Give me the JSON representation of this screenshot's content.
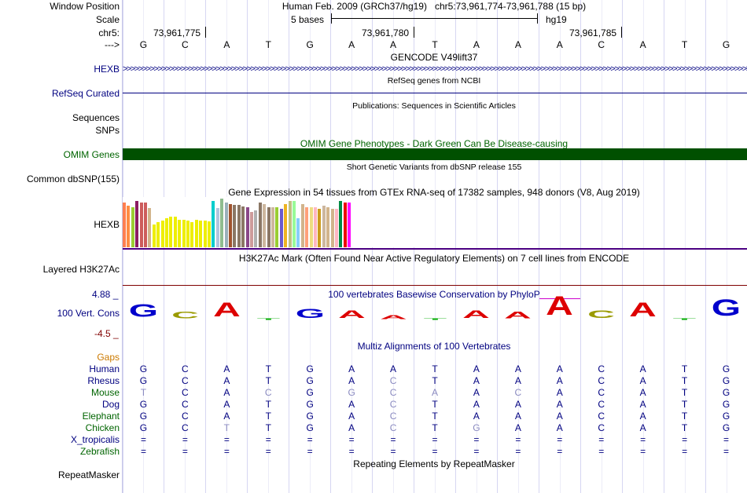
{
  "header": {
    "window_position_label": "Window Position",
    "assembly": "Human Feb. 2009 (GRCh37/hg19)",
    "position": "chr5:73,961,774-73,961,788 (15 bp)",
    "scale_label": "Scale",
    "scale_text": "5 bases",
    "scale_db": "hg19",
    "chrom_label": "chr5:",
    "coord_ticks": [
      "73,961,775",
      "73,961,780",
      "73,961,785"
    ],
    "strand_label": "--->"
  },
  "bases": [
    "G",
    "C",
    "A",
    "T",
    "G",
    "A",
    "A",
    "T",
    "A",
    "A",
    "A",
    "C",
    "A",
    "T",
    "G"
  ],
  "tracks": {
    "gencode": {
      "title": "GENCODE V49lift37",
      "label": "HEXB"
    },
    "refseq": {
      "title": "RefSeq genes from NCBI",
      "label": "RefSeq Curated"
    },
    "publications": {
      "title": "Publications: Sequences in Scientific Articles",
      "label1": "Sequences",
      "label2": "SNPs"
    },
    "omim": {
      "title": "OMIM Gene Phenotypes - Dark Green Can Be Disease-causing",
      "label": "OMIM Genes",
      "color": "#005000"
    },
    "dbsnp": {
      "title": "Short Genetic Variants from dbSNP release 155",
      "label": "Common dbSNP(155)"
    },
    "gtex": {
      "title": "Gene Expression in 54 tissues from GTEx RNA-seq of 17382 samples, 948 donors (V8, Aug 2019)",
      "label": "HEXB",
      "levels": [
        0.97,
        0.9,
        0.86,
        1.0,
        0.97,
        0.97,
        0.85,
        0.5,
        0.55,
        0.58,
        0.62,
        0.66,
        0.66,
        0.6,
        0.6,
        0.58,
        0.55,
        0.6,
        0.58,
        0.58,
        0.56,
        1.0,
        0.85,
        1.05,
        0.97,
        0.93,
        0.92,
        0.92,
        0.88,
        0.86,
        0.76,
        0.8,
        0.97,
        0.93,
        0.86,
        0.86,
        0.86,
        0.83,
        0.93,
        1.0,
        1.0,
        0.63,
        0.93,
        0.87,
        0.87,
        0.87,
        0.83,
        0.9,
        0.87,
        0.83,
        0.83,
        1.0,
        0.97,
        0.97
      ],
      "colors": [
        "#ff7f50",
        "#ff8c42",
        "#9acd32",
        "#8b1c62",
        "#cd5c5c",
        "#cd5c5c",
        "#d2b48c",
        "#eeee00",
        "#eeee00",
        "#eeee00",
        "#eeee00",
        "#eeee00",
        "#eeee00",
        "#eeee00",
        "#eeee00",
        "#eeee00",
        "#eeee00",
        "#eeee00",
        "#eeee00",
        "#eeee00",
        "#eeee00",
        "#00cdcd",
        "#b0c4de",
        "#8fbc8f",
        "#9ab0ba",
        "#a0522d",
        "#8b7765",
        "#8b7765",
        "#8b7765",
        "#8b4789",
        "#cd9b9b",
        "#b0b0b0",
        "#8b7765",
        "#cdb79e",
        "#8b7765",
        "#cdb79e",
        "#9acd32",
        "#6a5acd",
        "#eeb422",
        "#c0c080",
        "#98fb98",
        "#87cefa",
        "#d2b48c",
        "#ffa07a",
        "#eedc82",
        "#ffb6c1",
        "#cd9b1d",
        "#cdb79e",
        "#d2b48c",
        "#d2b48c",
        "#ffb6c1",
        "#008b45",
        "#ee0000",
        "#ff00ff"
      ]
    },
    "h3k27ac": {
      "title": "H3K27Ac Mark (Often Found Near Active Regulatory Elements) on 7 cell lines from ENCODE",
      "label": "Layered H3K27Ac",
      "line_color": "#800000"
    },
    "conservation": {
      "title": "100 vertebrates Basewise Conservation by PhyloP",
      "label": "100 Vert. Cons",
      "ymax": "4.88 _",
      "ymin": "-4.5 _",
      "heights": [
        0.5,
        0.25,
        0.55,
        0.0,
        0.35,
        0.3,
        0.15,
        0.05,
        0.3,
        0.25,
        0.75,
        0.3,
        0.55,
        0.05,
        0.65
      ],
      "colors": {
        "G": "#0000cc",
        "C": "#9b9b00",
        "A": "#dd0000",
        "T": "#00aa00"
      }
    },
    "multiz": {
      "title": "Multiz Alignments of 100 Vertebrates",
      "gaps_label": "Gaps",
      "species": [
        {
          "name": "Human",
          "seq": [
            "G",
            "C",
            "A",
            "T",
            "G",
            "A",
            "A",
            "T",
            "A",
            "A",
            "A",
            "C",
            "A",
            "T",
            "G"
          ],
          "faded": []
        },
        {
          "name": "Rhesus",
          "seq": [
            "G",
            "C",
            "A",
            "T",
            "G",
            "A",
            "C",
            "T",
            "A",
            "A",
            "A",
            "C",
            "A",
            "T",
            "G"
          ],
          "faded": [
            6
          ]
        },
        {
          "name": "Mouse",
          "seq": [
            "T",
            "C",
            "A",
            "C",
            "G",
            "G",
            "C",
            "A",
            "A",
            "C",
            "A",
            "C",
            "A",
            "T",
            "G"
          ],
          "faded": [
            0,
            3,
            5,
            6,
            7,
            9
          ]
        },
        {
          "name": "Dog",
          "seq": [
            "G",
            "C",
            "A",
            "T",
            "G",
            "A",
            "C",
            "T",
            "A",
            "A",
            "A",
            "C",
            "A",
            "T",
            "G"
          ],
          "faded": [
            6
          ]
        },
        {
          "name": "Elephant",
          "seq": [
            "G",
            "C",
            "A",
            "T",
            "G",
            "A",
            "C",
            "T",
            "A",
            "A",
            "A",
            "C",
            "A",
            "T",
            "G"
          ],
          "faded": [
            6
          ]
        },
        {
          "name": "Chicken",
          "seq": [
            "G",
            "C",
            "T",
            "T",
            "G",
            "A",
            "C",
            "T",
            "G",
            "A",
            "A",
            "C",
            "A",
            "T",
            "G"
          ],
          "faded": [
            2,
            6,
            8
          ]
        },
        {
          "name": "X_tropicalis",
          "seq": [
            "=",
            "=",
            "=",
            "=",
            "=",
            "=",
            "=",
            "=",
            "=",
            "=",
            "=",
            "=",
            "=",
            "=",
            "="
          ],
          "faded": []
        },
        {
          "name": "Zebrafish",
          "seq": [
            "=",
            "=",
            "=",
            "=",
            "=",
            "=",
            "=",
            "=",
            "=",
            "=",
            "=",
            "=",
            "=",
            "=",
            "="
          ],
          "faded": []
        }
      ]
    },
    "repeatmasker": {
      "title": "Repeating Elements by RepeatMasker",
      "label": "RepeatMasker"
    }
  },
  "colors": {
    "label_blue": "#000080",
    "label_green": "#006400",
    "label_orange": "#cc7a00",
    "gridline": "#d6d6f2",
    "purple_line": "#4b0082"
  }
}
